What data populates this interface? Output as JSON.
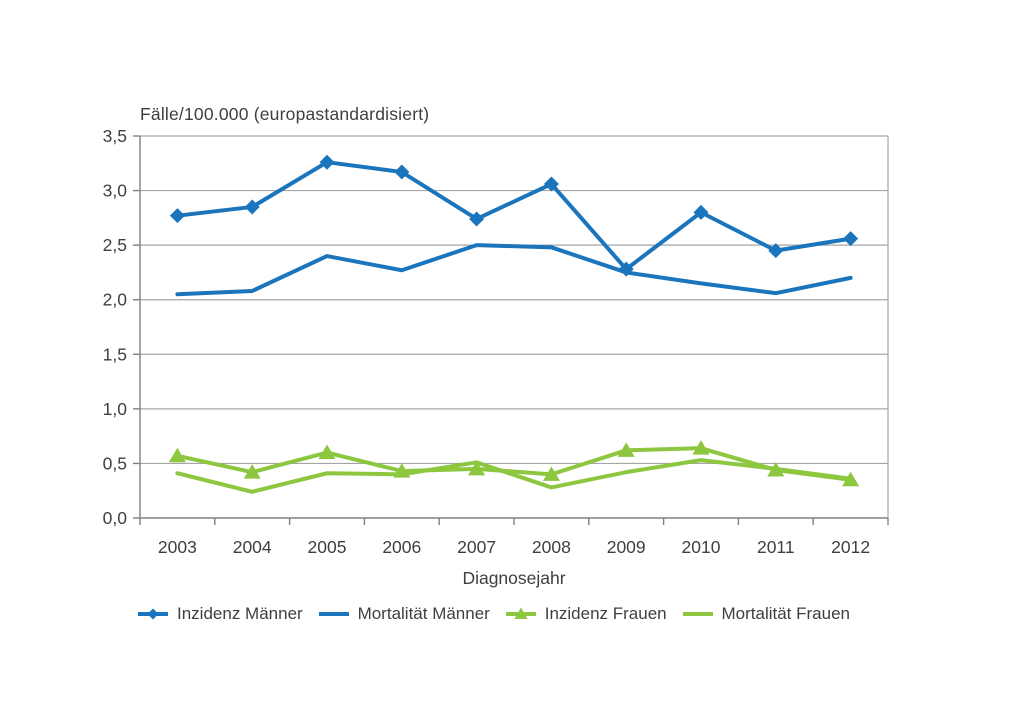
{
  "page": {
    "background": "#ffffff"
  },
  "chart_data": {
    "type": "line",
    "title": "Fälle/100.000 (europastandardisiert)",
    "xlabel": "Diagnosejahr",
    "ylabel": "Fälle/100.000 (europastandardisiert)",
    "categories": [
      "2003",
      "2004",
      "2005",
      "2006",
      "2007",
      "2008",
      "2009",
      "2010",
      "2011",
      "2012"
    ],
    "ylim": [
      0,
      3.5
    ],
    "y_ticks": [
      0,
      0.5,
      1.0,
      1.5,
      2.0,
      2.5,
      3.0,
      3.5
    ],
    "y_tick_labels": [
      "0,0",
      "0,5",
      "1,0",
      "1,5",
      "2,0",
      "2,5",
      "3,0",
      "3,5"
    ],
    "grid": true,
    "legend_position": "bottom",
    "series": [
      {
        "name": "Inzidenz Männer",
        "color": "#1b75bc",
        "marker": "diamond",
        "values": [
          2.77,
          2.85,
          3.26,
          3.17,
          2.74,
          3.06,
          2.28,
          2.8,
          2.45,
          2.56
        ]
      },
      {
        "name": "Mortalität Männer",
        "color": "#1b75bc",
        "marker": "none",
        "values": [
          2.05,
          2.08,
          2.4,
          2.27,
          2.5,
          2.48,
          2.25,
          2.15,
          2.06,
          2.2
        ]
      },
      {
        "name": "Inzidenz Frauen",
        "color": "#8dc63f",
        "marker": "triangle",
        "values": [
          0.57,
          0.42,
          0.6,
          0.43,
          0.45,
          0.4,
          0.62,
          0.64,
          0.44,
          0.35
        ]
      },
      {
        "name": "Mortalität Frauen",
        "color": "#8dc63f",
        "marker": "none",
        "values": [
          0.41,
          0.24,
          0.41,
          0.4,
          0.51,
          0.28,
          0.42,
          0.53,
          0.45,
          0.36
        ]
      }
    ],
    "colors": {
      "gridline": "#a6a6a6",
      "axis": "#808080",
      "text": "#3f3f3e"
    }
  }
}
